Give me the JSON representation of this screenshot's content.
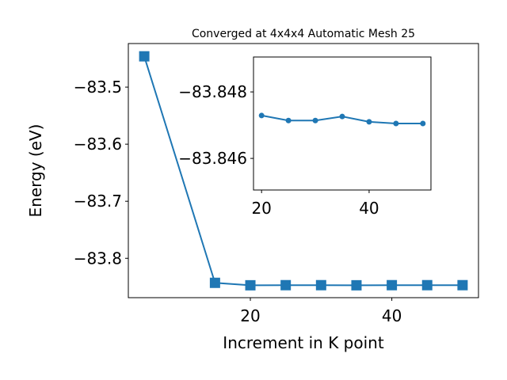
{
  "chart_data": [
    {
      "type": "line",
      "title": "Converged at 4x4x4 Automatic Mesh 25",
      "x_label": "Increment in K point",
      "y_label": "Energy (eV)",
      "x": [
        5,
        15,
        20,
        25,
        30,
        35,
        40,
        45,
        50
      ],
      "series": [
        {
          "color": "#1f77b4",
          "marker": "square",
          "values": [
            -83.446,
            -83.843,
            -83.8473,
            -83.8471,
            -83.8471,
            -83.8473,
            -83.8471,
            -83.8471,
            -83.8471
          ]
        }
      ],
      "xlim": [
        2.75,
        52.25
      ],
      "ylim": [
        -83.869,
        -83.4236
      ],
      "xticks": [
        20,
        40
      ],
      "yticks": [
        {
          "value": -83.8,
          "label": "−83.8"
        },
        {
          "value": -83.7,
          "label": "−83.7"
        },
        {
          "value": -83.6,
          "label": "−83.6"
        },
        {
          "value": -83.5,
          "label": "−83.5"
        }
      ]
    },
    {
      "type": "line",
      "x": [
        20,
        25,
        30,
        35,
        40,
        45,
        50
      ],
      "series": [
        {
          "color": "#1f77b4",
          "marker": "circle",
          "values": [
            -83.84729,
            -83.84714,
            -83.84714,
            -83.84726,
            -83.8471,
            -83.84705,
            -83.84705
          ]
        }
      ],
      "xlim": [
        18.5,
        51.5
      ],
      "ylim": [
        -83.84505,
        -83.84905
      ],
      "xticks": [
        20,
        40
      ],
      "yticks": [
        {
          "value": -83.848,
          "label": "−83.848"
        },
        {
          "value": -83.846,
          "label": "−83.846"
        }
      ]
    }
  ]
}
